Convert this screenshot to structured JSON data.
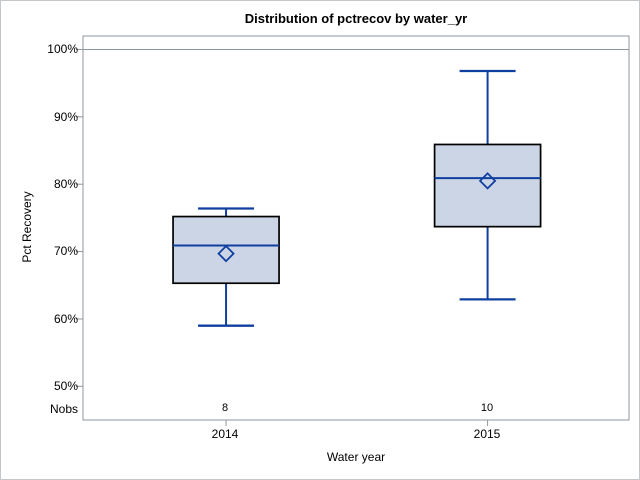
{
  "title": "Distribution of pctrecov by water_yr",
  "chart_data": {
    "type": "box",
    "title": "Distribution of pctrecov by water_yr",
    "xlabel": "Water year",
    "ylabel": "Pct Recovery",
    "ylim": [
      45,
      102
    ],
    "yticks": [
      "100%",
      "90%",
      "80%",
      "70%",
      "60%",
      "50%"
    ],
    "ytick_values": [
      100,
      90,
      80,
      70,
      60,
      50
    ],
    "refline": 100,
    "grid": false,
    "legend": "none",
    "nobs_label": "Nobs",
    "categories": [
      "2014",
      "2015"
    ],
    "boxes": [
      {
        "category": "2014",
        "nobs": "8",
        "min": 59.0,
        "q1": 65.3,
        "median": 70.9,
        "mean": 69.7,
        "q3": 75.2,
        "max": 76.4
      },
      {
        "category": "2015",
        "nobs": "10",
        "min": 62.9,
        "q1": 73.7,
        "median": 80.9,
        "mean": 80.5,
        "q3": 85.9,
        "max": 96.8
      }
    ],
    "colors": {
      "box_fill": "#ccd5e5",
      "box_border": "#000000",
      "line": "#10409f",
      "axis": "#8f979d",
      "text": "#000000"
    }
  }
}
